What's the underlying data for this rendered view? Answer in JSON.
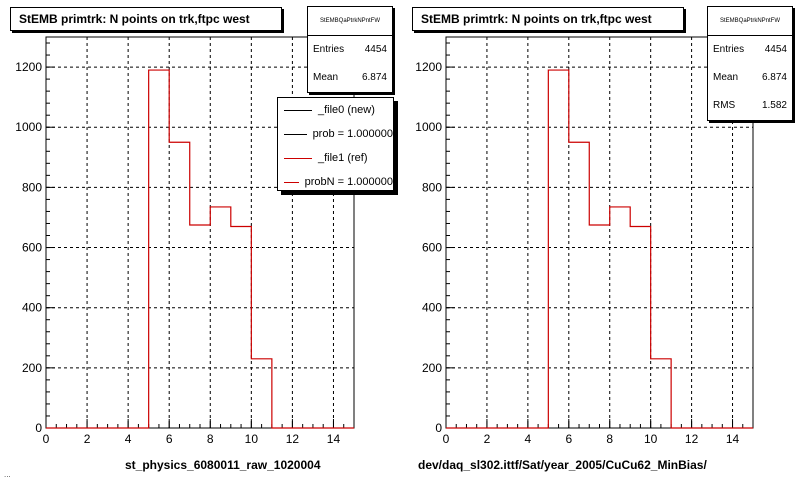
{
  "footer_text": "...",
  "chart_data": [
    {
      "type": "bar",
      "histogram": true,
      "title": "StEMB primtrk: N points on trk,ftpc west",
      "xlabel": "st_physics_6080011_raw_1020004",
      "ylabel": "",
      "xlim": [
        0,
        15
      ],
      "ylim": [
        0,
        1300
      ],
      "xticks": [
        "0",
        "2",
        "4",
        "6",
        "8",
        "10",
        "12",
        "14"
      ],
      "yticks": [
        "0",
        "200",
        "400",
        "600",
        "800",
        "1000",
        "1200"
      ],
      "grid": true,
      "bin_width": 1,
      "bin_edges_start": 0,
      "values": [
        0,
        0,
        0,
        0,
        0,
        1190,
        950,
        675,
        735,
        670,
        230,
        0,
        0,
        0,
        0
      ],
      "line_color": "#cc0000",
      "stats": {
        "name": "StEMBQaPtrkNPntFW",
        "rows": [
          {
            "label": "Entries",
            "value": "4454"
          },
          {
            "label": "Mean",
            "value": "6.874"
          }
        ]
      },
      "legend": {
        "placement": "top-right",
        "entries": [
          {
            "label": "_file0 (new)",
            "color": "#000000"
          },
          {
            "label": "prob = 1.000000",
            "color": "#000000"
          },
          {
            "label": "_file1 (ref)",
            "color": "#cc0000"
          },
          {
            "label": "probN = 1.000000",
            "color": "#cc0000"
          }
        ]
      }
    },
    {
      "type": "bar",
      "histogram": true,
      "title": "StEMB primtrk: N points on trk,ftpc west",
      "xlabel": "dev/daq_sl302.ittf/Sat/year_2005/CuCu62_MinBias/",
      "ylabel": "",
      "xlim": [
        0,
        15
      ],
      "ylim": [
        0,
        1300
      ],
      "xticks": [
        "0",
        "2",
        "4",
        "6",
        "8",
        "10",
        "12",
        "14"
      ],
      "yticks": [
        "0",
        "200",
        "400",
        "600",
        "800",
        "1000",
        "1200"
      ],
      "grid": true,
      "bin_width": 1,
      "bin_edges_start": 0,
      "values": [
        0,
        0,
        0,
        0,
        0,
        1190,
        950,
        675,
        735,
        670,
        230,
        0,
        0,
        0,
        0
      ],
      "line_color": "#cc0000",
      "stats": {
        "name": "StEMBQaPtrkNPntFW",
        "rows": [
          {
            "label": "Entries",
            "value": "4454"
          },
          {
            "label": "Mean",
            "value": "6.874"
          },
          {
            "label": "RMS",
            "value": "1.582"
          }
        ]
      }
    }
  ]
}
